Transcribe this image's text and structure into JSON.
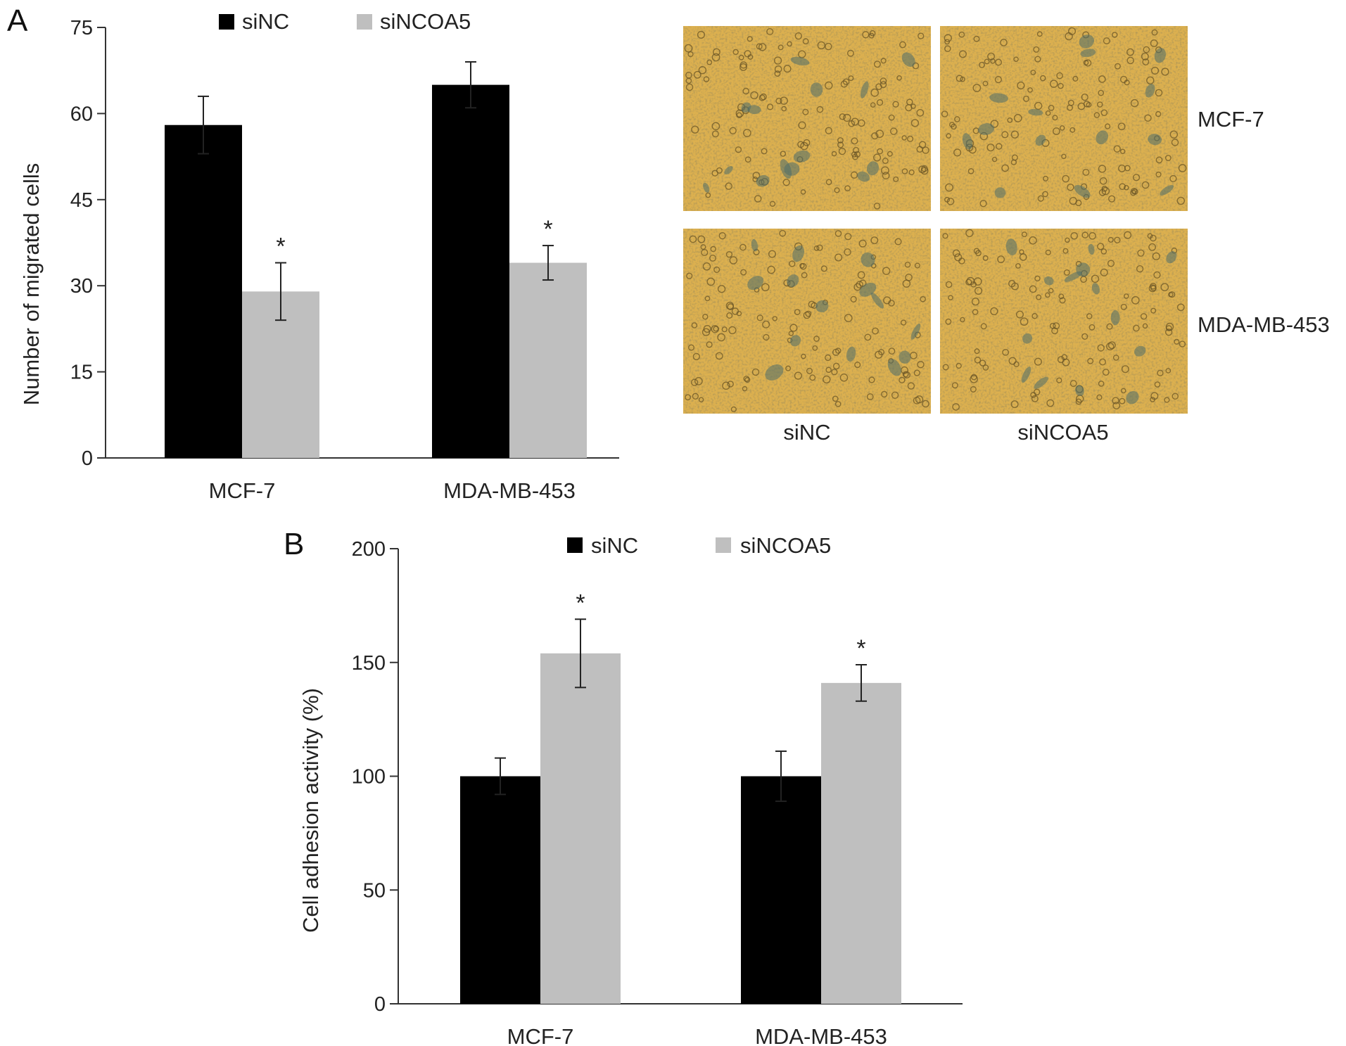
{
  "chart_data": [
    {
      "panel": "A",
      "type": "bar",
      "categories": [
        "MCF-7",
        "MDA-MB-453"
      ],
      "series": [
        {
          "name": "siNC",
          "values": [
            58,
            65
          ],
          "errors": [
            5,
            4
          ],
          "color": "#000000"
        },
        {
          "name": "siNCOA5",
          "values": [
            29,
            34
          ],
          "errors": [
            5,
            3
          ],
          "color": "#bfbfbf"
        }
      ],
      "significance": [
        [
          "",
          "*"
        ],
        [
          "",
          "*"
        ]
      ],
      "ylabel": "Number of migrated cells",
      "xlabel": "",
      "ylim": [
        0,
        75
      ],
      "yticks": [
        "0",
        "15",
        "30",
        "45",
        "60",
        "75"
      ],
      "legend": "top"
    },
    {
      "panel": "B",
      "type": "bar",
      "categories": [
        "MCF-7",
        "MDA-MB-453"
      ],
      "series": [
        {
          "name": "siNC",
          "values": [
            100,
            100
          ],
          "errors": [
            8,
            11
          ],
          "color": "#000000"
        },
        {
          "name": "siNCOA5",
          "values": [
            154,
            141
          ],
          "errors": [
            15,
            8
          ],
          "color": "#bfbfbf"
        }
      ],
      "significance": [
        [
          "",
          "*"
        ],
        [
          "",
          "*"
        ]
      ],
      "ylabel": "Cell adhesion activity (%)",
      "xlabel": "",
      "ylim": [
        0,
        200
      ],
      "yticks": [
        "0",
        "50",
        "100",
        "150",
        "200"
      ],
      "legend": "top"
    }
  ],
  "micrographs": {
    "row_labels": [
      "MCF-7",
      "MDA-MB-453"
    ],
    "col_labels": [
      "siNC",
      "siNCOA5"
    ],
    "background_color": "#dcb04f"
  },
  "panel_letters": [
    "A",
    "B"
  ]
}
